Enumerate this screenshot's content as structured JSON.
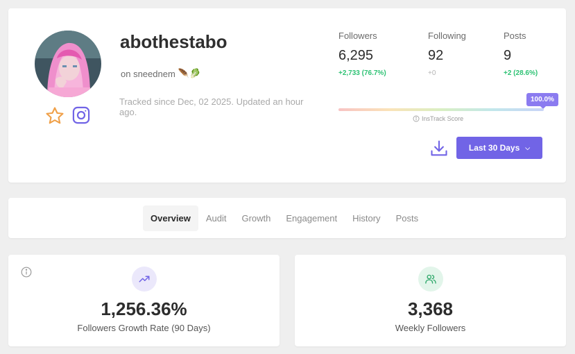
{
  "profile": {
    "username": "abothestabo",
    "platform_text": "on sneednem",
    "emojis": "🪶🥬",
    "tracked_text": "Tracked since Dec, 02 2025. Updated an hour ago."
  },
  "stats": {
    "followers": {
      "label": "Followers",
      "value": "6,295",
      "delta": "+2,733 (76.7%)"
    },
    "following": {
      "label": "Following",
      "value": "92",
      "delta": "+0"
    },
    "posts": {
      "label": "Posts",
      "value": "9",
      "delta": "+2 (28.6%)"
    }
  },
  "score": {
    "badge": "100.0%",
    "label": "InsTrack Score",
    "level": 1.0
  },
  "actions": {
    "range_label": "Last 30 Days",
    "range_chevron": "⌄"
  },
  "tabs": [
    {
      "label": "Overview",
      "active": true
    },
    {
      "label": "Audit"
    },
    {
      "label": "Growth"
    },
    {
      "label": "Engagement"
    },
    {
      "label": "History"
    },
    {
      "label": "Posts"
    }
  ],
  "metrics": {
    "growth": {
      "value": "1,256.36%",
      "label": "Followers Growth Rate (90 Days)",
      "icon": "trending-up-icon"
    },
    "weekly": {
      "value": "3,368",
      "label": "Weekly Followers",
      "icon": "users-icon"
    }
  },
  "colors": {
    "accent": "#7164e6",
    "positive": "#2ec274",
    "star": "#f0a048",
    "instagram": "#7164e6"
  }
}
